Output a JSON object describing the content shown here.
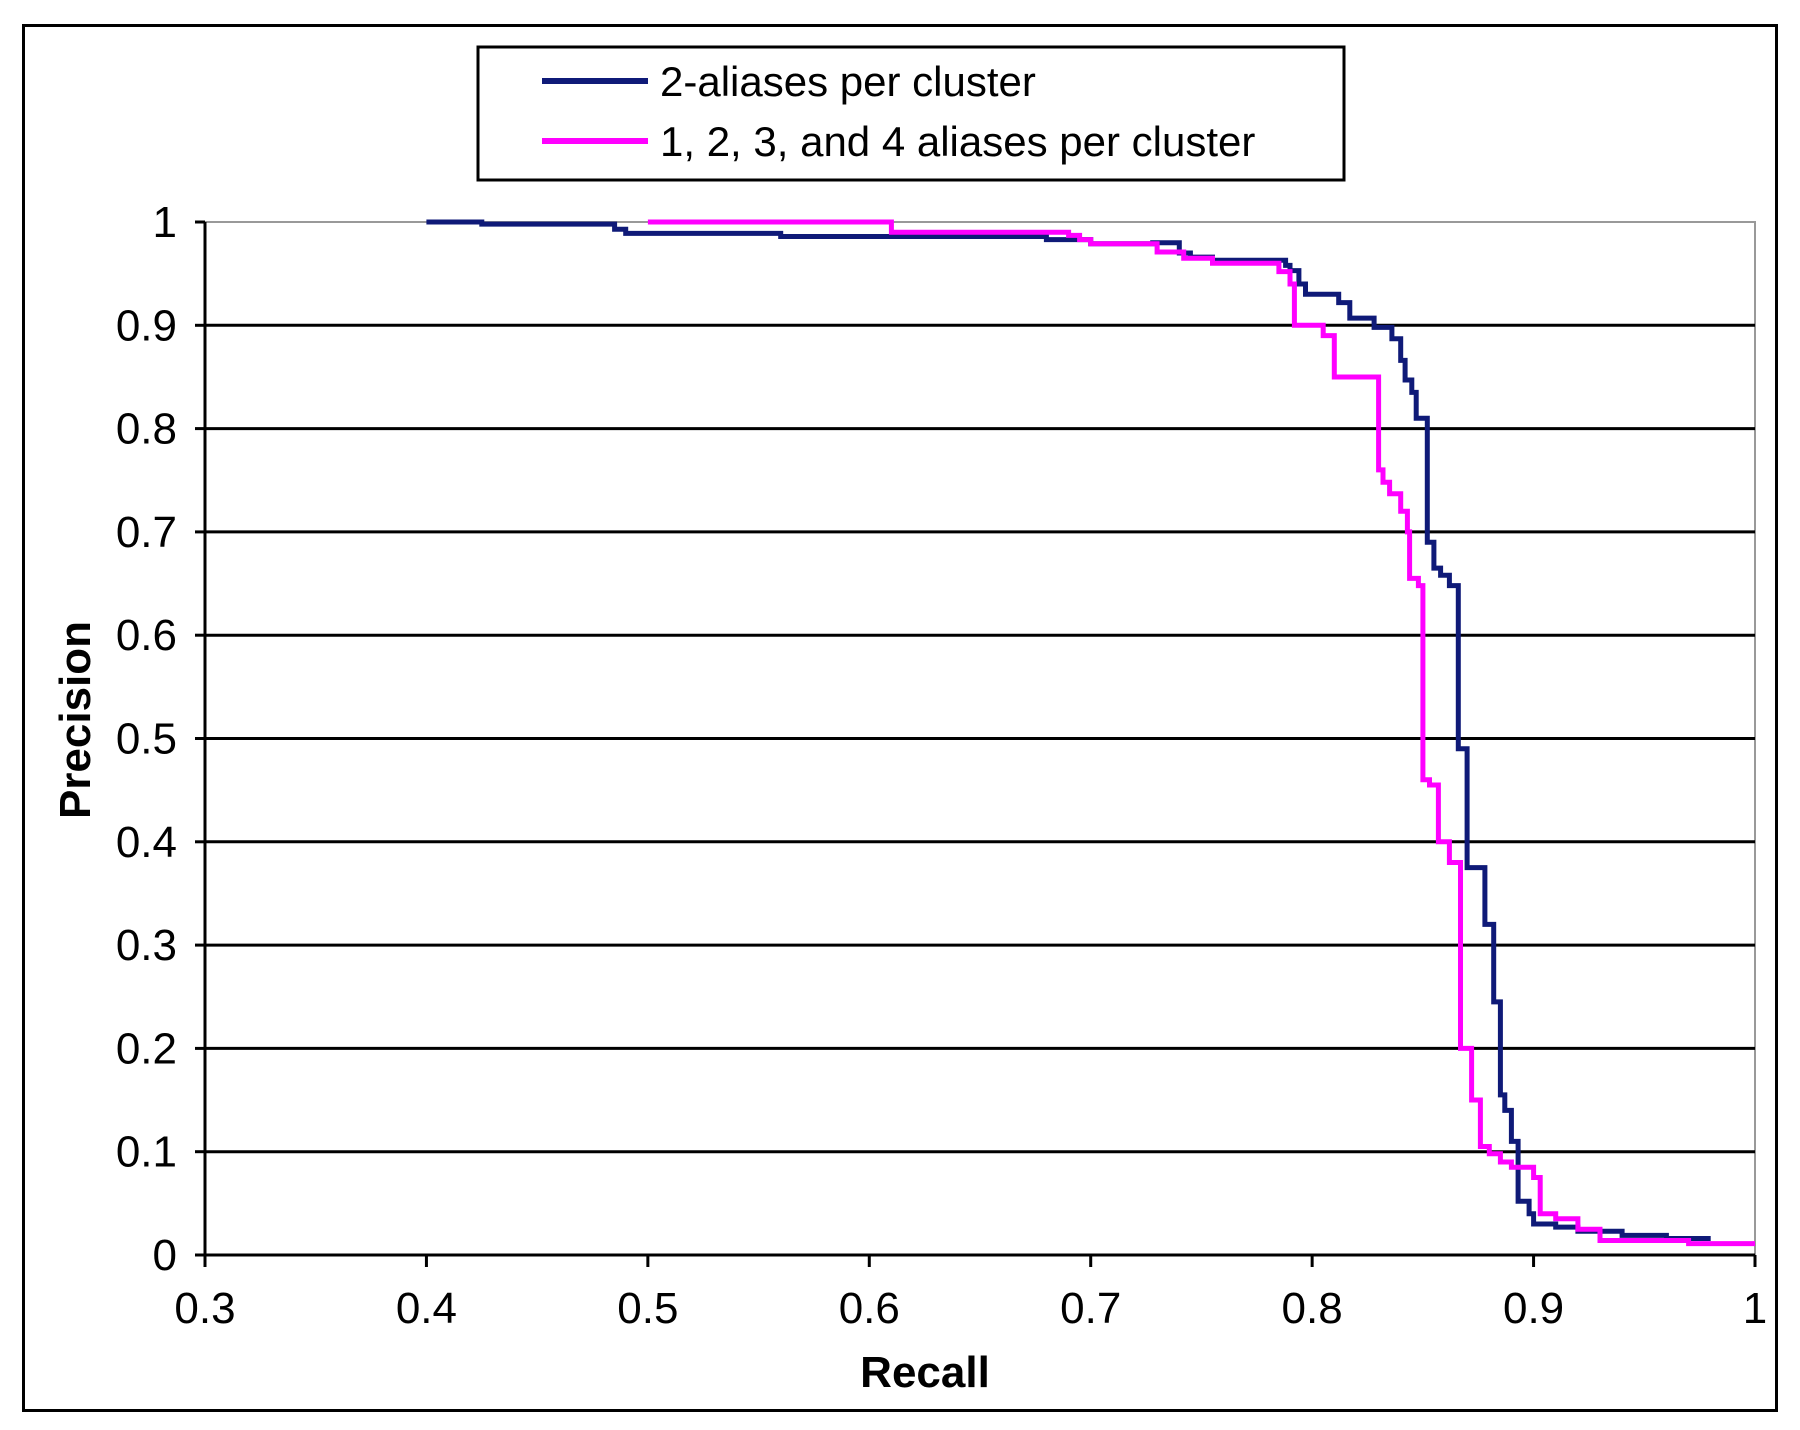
{
  "chart_data": {
    "type": "line",
    "title": "",
    "xlabel": "Recall",
    "ylabel": "Precision",
    "xlim": [
      0.3,
      1
    ],
    "ylim": [
      0,
      1
    ],
    "x_ticks": [
      "0.3",
      "0.4",
      "0.5",
      "0.6",
      "0.7",
      "0.8",
      "0.9",
      "1"
    ],
    "y_ticks": [
      "0",
      "0.1",
      "0.2",
      "0.3",
      "0.4",
      "0.5",
      "0.6",
      "0.7",
      "0.8",
      "0.9",
      "1"
    ],
    "grid": "horizontal",
    "legend_position": "top-center",
    "series": [
      {
        "name": "2-aliases per cluster",
        "color": "#0f1a78",
        "points": [
          [
            0.4,
            1.0
          ],
          [
            0.425,
            1.0
          ],
          [
            0.425,
            0.998
          ],
          [
            0.485,
            0.998
          ],
          [
            0.485,
            0.993
          ],
          [
            0.49,
            0.993
          ],
          [
            0.49,
            0.989
          ],
          [
            0.56,
            0.989
          ],
          [
            0.56,
            0.986
          ],
          [
            0.68,
            0.986
          ],
          [
            0.68,
            0.983
          ],
          [
            0.7,
            0.983
          ],
          [
            0.7,
            0.979
          ],
          [
            0.728,
            0.979
          ],
          [
            0.728,
            0.98
          ],
          [
            0.74,
            0.98
          ],
          [
            0.74,
            0.97
          ],
          [
            0.745,
            0.97
          ],
          [
            0.745,
            0.966
          ],
          [
            0.755,
            0.966
          ],
          [
            0.755,
            0.963
          ],
          [
            0.788,
            0.963
          ],
          [
            0.788,
            0.958
          ],
          [
            0.79,
            0.958
          ],
          [
            0.79,
            0.953
          ],
          [
            0.794,
            0.953
          ],
          [
            0.794,
            0.94
          ],
          [
            0.797,
            0.94
          ],
          [
            0.797,
            0.93
          ],
          [
            0.812,
            0.93
          ],
          [
            0.812,
            0.922
          ],
          [
            0.817,
            0.922
          ],
          [
            0.817,
            0.907
          ],
          [
            0.828,
            0.907
          ],
          [
            0.828,
            0.898
          ],
          [
            0.836,
            0.898
          ],
          [
            0.836,
            0.887
          ],
          [
            0.84,
            0.887
          ],
          [
            0.84,
            0.866
          ],
          [
            0.842,
            0.866
          ],
          [
            0.842,
            0.847
          ],
          [
            0.845,
            0.847
          ],
          [
            0.845,
            0.835
          ],
          [
            0.847,
            0.835
          ],
          [
            0.847,
            0.81
          ],
          [
            0.852,
            0.81
          ],
          [
            0.852,
            0.69
          ],
          [
            0.855,
            0.69
          ],
          [
            0.855,
            0.665
          ],
          [
            0.858,
            0.665
          ],
          [
            0.858,
            0.658
          ],
          [
            0.862,
            0.658
          ],
          [
            0.862,
            0.648
          ],
          [
            0.866,
            0.648
          ],
          [
            0.866,
            0.49
          ],
          [
            0.87,
            0.49
          ],
          [
            0.87,
            0.375
          ],
          [
            0.878,
            0.375
          ],
          [
            0.878,
            0.32
          ],
          [
            0.882,
            0.32
          ],
          [
            0.882,
            0.245
          ],
          [
            0.885,
            0.245
          ],
          [
            0.885,
            0.155
          ],
          [
            0.887,
            0.155
          ],
          [
            0.887,
            0.14
          ],
          [
            0.89,
            0.14
          ],
          [
            0.89,
            0.11
          ],
          [
            0.893,
            0.11
          ],
          [
            0.893,
            0.052
          ],
          [
            0.898,
            0.052
          ],
          [
            0.898,
            0.04
          ],
          [
            0.9,
            0.04
          ],
          [
            0.9,
            0.03
          ],
          [
            0.91,
            0.03
          ],
          [
            0.91,
            0.027
          ],
          [
            0.92,
            0.027
          ],
          [
            0.92,
            0.023
          ],
          [
            0.94,
            0.023
          ],
          [
            0.94,
            0.019
          ],
          [
            0.96,
            0.019
          ],
          [
            0.96,
            0.016
          ],
          [
            0.98,
            0.016
          ]
        ]
      },
      {
        "name": "1, 2, 3, and 4 aliases per cluster",
        "color": "#ff00ff",
        "points": [
          [
            0.5,
            1.0
          ],
          [
            0.61,
            1.0
          ],
          [
            0.61,
            0.99
          ],
          [
            0.69,
            0.99
          ],
          [
            0.69,
            0.987
          ],
          [
            0.695,
            0.987
          ],
          [
            0.695,
            0.983
          ],
          [
            0.7,
            0.983
          ],
          [
            0.7,
            0.979
          ],
          [
            0.73,
            0.979
          ],
          [
            0.73,
            0.971
          ],
          [
            0.742,
            0.971
          ],
          [
            0.742,
            0.965
          ],
          [
            0.755,
            0.965
          ],
          [
            0.755,
            0.96
          ],
          [
            0.785,
            0.96
          ],
          [
            0.785,
            0.952
          ],
          [
            0.79,
            0.952
          ],
          [
            0.79,
            0.94
          ],
          [
            0.792,
            0.94
          ],
          [
            0.792,
            0.9
          ],
          [
            0.805,
            0.9
          ],
          [
            0.805,
            0.89
          ],
          [
            0.81,
            0.89
          ],
          [
            0.81,
            0.85
          ],
          [
            0.83,
            0.85
          ],
          [
            0.83,
            0.76
          ],
          [
            0.832,
            0.76
          ],
          [
            0.832,
            0.748
          ],
          [
            0.835,
            0.748
          ],
          [
            0.835,
            0.737
          ],
          [
            0.84,
            0.737
          ],
          [
            0.84,
            0.72
          ],
          [
            0.843,
            0.72
          ],
          [
            0.843,
            0.7
          ],
          [
            0.844,
            0.7
          ],
          [
            0.844,
            0.655
          ],
          [
            0.848,
            0.655
          ],
          [
            0.848,
            0.648
          ],
          [
            0.85,
            0.648
          ],
          [
            0.85,
            0.46
          ],
          [
            0.853,
            0.46
          ],
          [
            0.853,
            0.455
          ],
          [
            0.857,
            0.455
          ],
          [
            0.857,
            0.4
          ],
          [
            0.862,
            0.4
          ],
          [
            0.862,
            0.38
          ],
          [
            0.867,
            0.38
          ],
          [
            0.867,
            0.2
          ],
          [
            0.872,
            0.2
          ],
          [
            0.872,
            0.15
          ],
          [
            0.876,
            0.15
          ],
          [
            0.876,
            0.105
          ],
          [
            0.88,
            0.105
          ],
          [
            0.88,
            0.098
          ],
          [
            0.885,
            0.098
          ],
          [
            0.885,
            0.09
          ],
          [
            0.89,
            0.09
          ],
          [
            0.89,
            0.085
          ],
          [
            0.9,
            0.085
          ],
          [
            0.9,
            0.075
          ],
          [
            0.903,
            0.075
          ],
          [
            0.903,
            0.04
          ],
          [
            0.91,
            0.04
          ],
          [
            0.91,
            0.035
          ],
          [
            0.92,
            0.035
          ],
          [
            0.92,
            0.025
          ],
          [
            0.93,
            0.025
          ],
          [
            0.93,
            0.014
          ],
          [
            0.97,
            0.014
          ],
          [
            0.97,
            0.011
          ],
          [
            1.0,
            0.011
          ]
        ]
      }
    ]
  }
}
